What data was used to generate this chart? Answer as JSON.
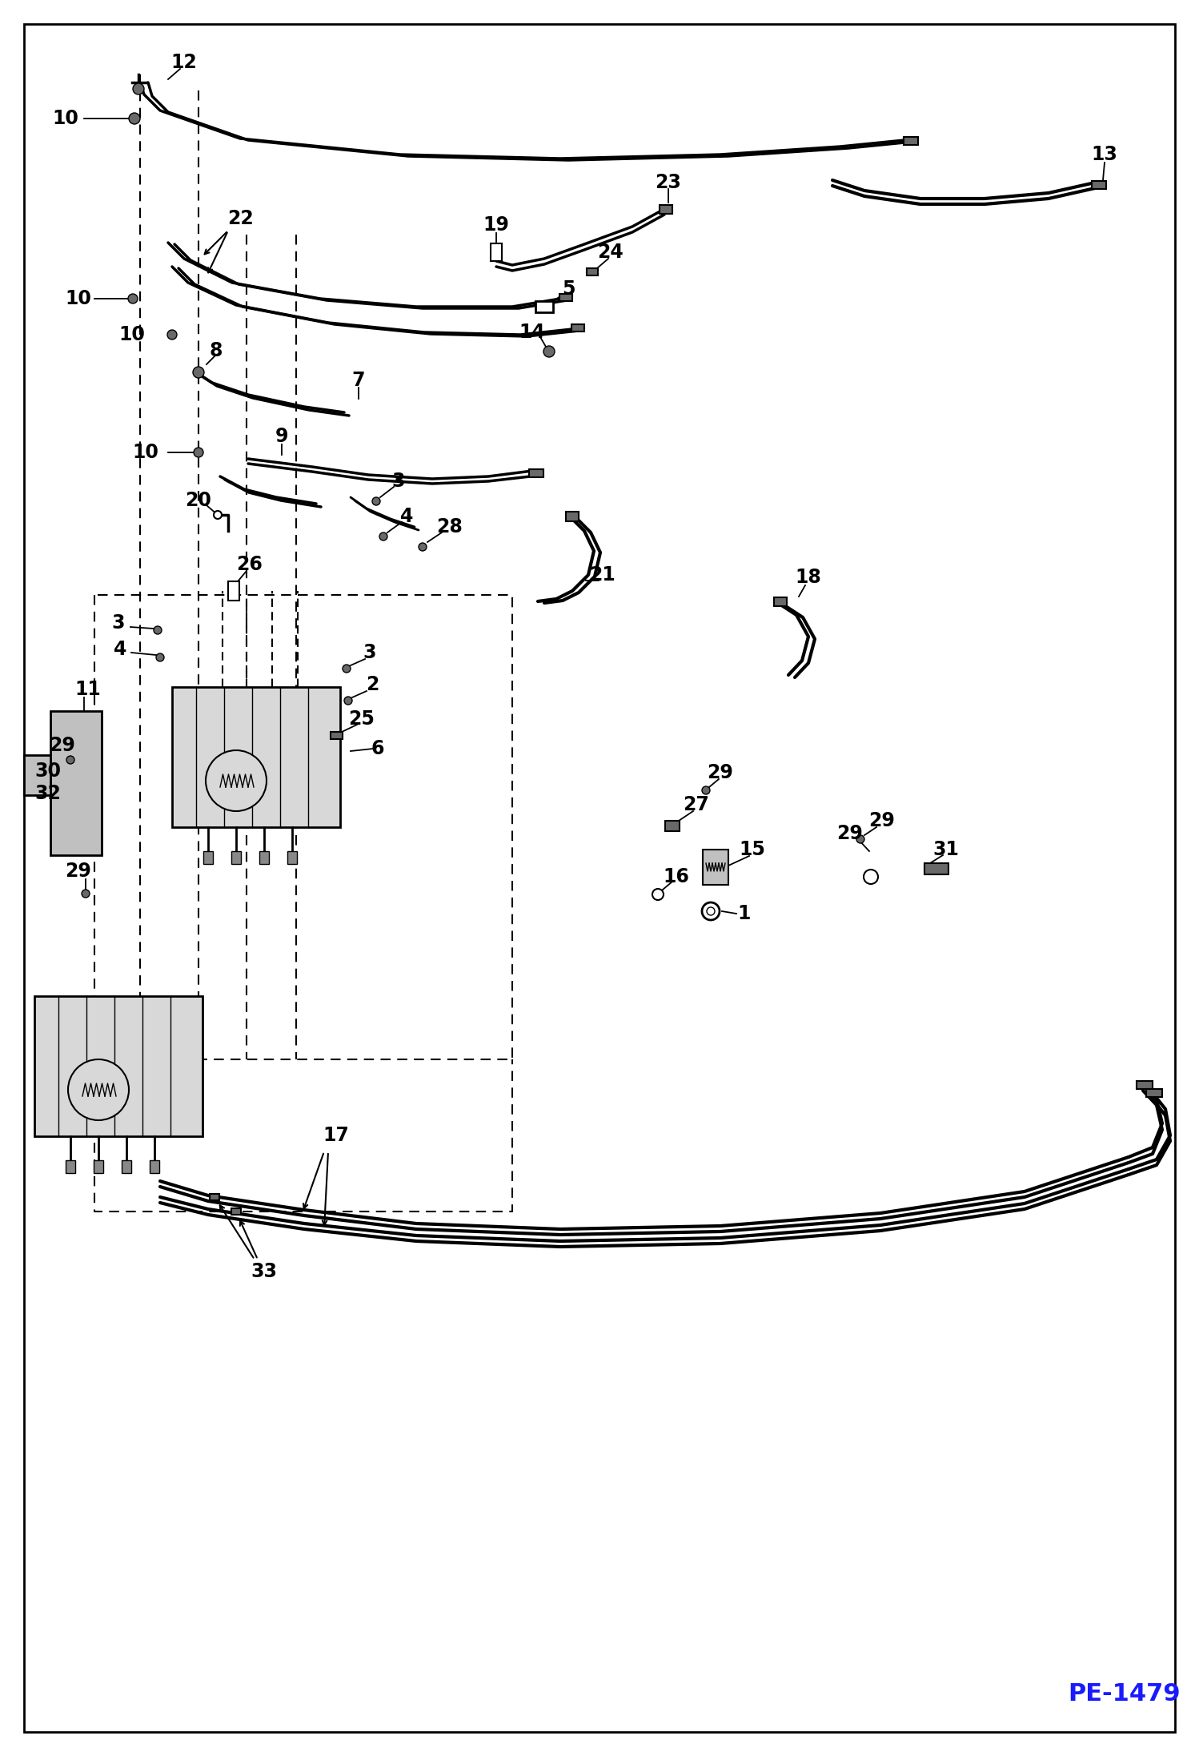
{
  "bg_color": "#ffffff",
  "line_color": "#000000",
  "label_color": "#000000",
  "page_code": "PE-1479",
  "figsize": [
    14.98,
    21.93
  ],
  "dpi": 100
}
